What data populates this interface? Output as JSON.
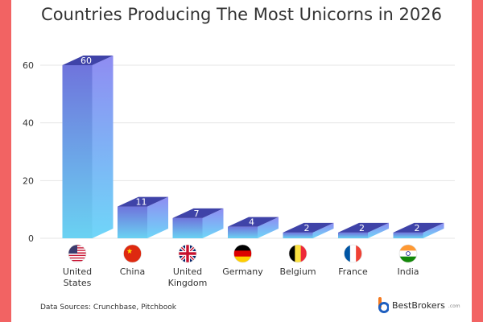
{
  "colors": {
    "border": "#f26363",
    "bar_top": "#3f43a8",
    "bar_front_top": "#6f74dc",
    "bar_front_bottom": "#6ad2f2",
    "bar_side_top": "#8f8cf2",
    "bar_side_bottom": "#6fd6f8",
    "grid": "#e4e4e4",
    "text": "#333333",
    "brand_orange": "#f47a20",
    "brand_blue": "#1f5fbf"
  },
  "source": "Data Sources: Crunchbase, Pitchbook",
  "brand": {
    "name": "BestBrokers",
    "tld": ".com"
  },
  "chart_data": {
    "type": "bar",
    "title": "Countries Producing The Most Unicorns in 2026",
    "categories": [
      [
        "United",
        "States"
      ],
      [
        "China"
      ],
      [
        "United",
        "Kingdom"
      ],
      [
        "Germany"
      ],
      [
        "Belgium"
      ],
      [
        "France"
      ],
      [
        "India"
      ]
    ],
    "flags": [
      "us-flag-icon",
      "china-flag-icon",
      "uk-flag-icon",
      "germany-flag-icon",
      "belgium-flag-icon",
      "france-flag-icon",
      "india-flag-icon"
    ],
    "values": [
      60,
      11,
      7,
      4,
      2,
      2,
      2
    ],
    "data_labels": [
      "60",
      "11",
      "7",
      "4",
      "2",
      "2",
      "2"
    ],
    "y_ticks": [
      0,
      20,
      40,
      60
    ],
    "ylim": [
      0,
      60
    ],
    "grid": true,
    "legend": "none",
    "style": "3d-bar"
  }
}
